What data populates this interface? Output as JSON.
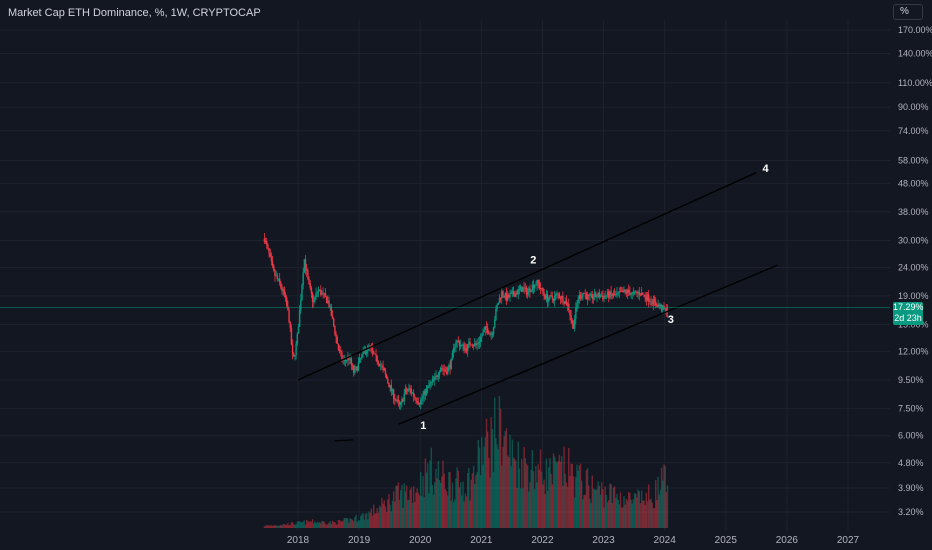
{
  "header": {
    "symbol_title": "Market Cap ETH Dominance, %, 1W, CRYPTOCAP",
    "scale_button": "%"
  },
  "price_badge": {
    "price": "17.29%",
    "countdown": "2d 23h"
  },
  "colors": {
    "background": "#131722",
    "up": "#089981",
    "down": "#f23645",
    "line": "#000000",
    "grid": "#1e222d"
  },
  "chart_data": {
    "type": "candlestick",
    "y_scale": "log",
    "ylim": [
      3.0,
      185
    ],
    "xlim": [
      2017.35,
      2027.9
    ],
    "y_ticks": [
      {
        "value": 170,
        "label": "170.00%"
      },
      {
        "value": 140,
        "label": "140.00%"
      },
      {
        "value": 110,
        "label": "110.00%"
      },
      {
        "value": 90,
        "label": "90.00%"
      },
      {
        "value": 74,
        "label": "74.00%"
      },
      {
        "value": 58,
        "label": "58.00%"
      },
      {
        "value": 48,
        "label": "48.00%"
      },
      {
        "value": 38,
        "label": "38.00%"
      },
      {
        "value": 30,
        "label": "30.00%"
      },
      {
        "value": 24,
        "label": "24.00%"
      },
      {
        "value": 19,
        "label": "19.00%"
      },
      {
        "value": 15,
        "label": "15.00%"
      },
      {
        "value": 12,
        "label": "12.00%"
      },
      {
        "value": 9.5,
        "label": "9.50%"
      },
      {
        "value": 7.5,
        "label": "7.50%"
      },
      {
        "value": 6,
        "label": "6.00%"
      },
      {
        "value": 4.8,
        "label": "4.80%"
      },
      {
        "value": 3.9,
        "label": "3.90%"
      },
      {
        "value": 3.2,
        "label": "3.20%"
      }
    ],
    "x_ticks": [
      {
        "value": 2018,
        "label": "2018"
      },
      {
        "value": 2019,
        "label": "2019"
      },
      {
        "value": 2020,
        "label": "2020"
      },
      {
        "value": 2021,
        "label": "2021"
      },
      {
        "value": 2022,
        "label": "2022"
      },
      {
        "value": 2023,
        "label": "2023"
      },
      {
        "value": 2024,
        "label": "2024"
      },
      {
        "value": 2025,
        "label": "2025"
      },
      {
        "value": 2026,
        "label": "2026"
      },
      {
        "value": 2027,
        "label": "2027"
      }
    ],
    "last_price": 17.29,
    "price_path": [
      [
        2017.45,
        30.5
      ],
      [
        2017.52,
        27
      ],
      [
        2017.6,
        23
      ],
      [
        2017.7,
        21
      ],
      [
        2017.78,
        19
      ],
      [
        2017.85,
        16
      ],
      [
        2017.92,
        11
      ],
      [
        2017.98,
        13
      ],
      [
        2018.03,
        17
      ],
      [
        2018.1,
        26
      ],
      [
        2018.17,
        21
      ],
      [
        2018.25,
        18
      ],
      [
        2018.33,
        20
      ],
      [
        2018.42,
        19
      ],
      [
        2018.5,
        18
      ],
      [
        2018.58,
        15
      ],
      [
        2018.67,
        12
      ],
      [
        2018.75,
        11
      ],
      [
        2018.83,
        11.5
      ],
      [
        2018.92,
        10
      ],
      [
        2019.0,
        11
      ],
      [
        2019.08,
        12
      ],
      [
        2019.17,
        12.5
      ],
      [
        2019.25,
        11.5
      ],
      [
        2019.33,
        11
      ],
      [
        2019.42,
        10
      ],
      [
        2019.5,
        9
      ],
      [
        2019.58,
        8.2
      ],
      [
        2019.67,
        7.6
      ],
      [
        2019.75,
        8.6
      ],
      [
        2019.83,
        8.8
      ],
      [
        2019.92,
        8.2
      ],
      [
        2020.0,
        7.9
      ],
      [
        2020.08,
        8.6
      ],
      [
        2020.17,
        9.2
      ],
      [
        2020.25,
        9.6
      ],
      [
        2020.33,
        10.6
      ],
      [
        2020.42,
        10.2
      ],
      [
        2020.5,
        10.8
      ],
      [
        2020.58,
        13.2
      ],
      [
        2020.67,
        12.6
      ],
      [
        2020.75,
        12.3
      ],
      [
        2020.83,
        13.0
      ],
      [
        2020.92,
        12.6
      ],
      [
        2021.0,
        13.6
      ],
      [
        2021.08,
        14.6
      ],
      [
        2021.17,
        13.8
      ],
      [
        2021.25,
        17.2
      ],
      [
        2021.33,
        19.6
      ],
      [
        2021.42,
        18.6
      ],
      [
        2021.5,
        19.2
      ],
      [
        2021.58,
        19.6
      ],
      [
        2021.67,
        20.2
      ],
      [
        2021.75,
        19.6
      ],
      [
        2021.83,
        20.6
      ],
      [
        2021.92,
        21.2
      ],
      [
        2022.0,
        19.6
      ],
      [
        2022.08,
        18.6
      ],
      [
        2022.17,
        18.6
      ],
      [
        2022.25,
        19.2
      ],
      [
        2022.33,
        18.6
      ],
      [
        2022.42,
        17.6
      ],
      [
        2022.5,
        14.6
      ],
      [
        2022.58,
        18.6
      ],
      [
        2022.67,
        19.6
      ],
      [
        2022.75,
        18.6
      ],
      [
        2022.83,
        18.9
      ],
      [
        2022.92,
        19.1
      ],
      [
        2023.0,
        18.9
      ],
      [
        2023.08,
        19.2
      ],
      [
        2023.17,
        19.0
      ],
      [
        2023.25,
        19.2
      ],
      [
        2023.33,
        19.6
      ],
      [
        2023.42,
        19.6
      ],
      [
        2023.5,
        19.2
      ],
      [
        2023.58,
        19.6
      ],
      [
        2023.67,
        19.0
      ],
      [
        2023.75,
        18.6
      ],
      [
        2023.83,
        17.9
      ],
      [
        2023.92,
        17.4
      ],
      [
        2024.0,
        16.8
      ],
      [
        2024.05,
        17.29
      ]
    ],
    "volume_profile": [
      [
        2017.45,
        0.02
      ],
      [
        2017.9,
        0.04
      ],
      [
        2018.2,
        0.06
      ],
      [
        2018.6,
        0.05
      ],
      [
        2019.0,
        0.1
      ],
      [
        2019.3,
        0.18
      ],
      [
        2019.6,
        0.3
      ],
      [
        2019.9,
        0.35
      ],
      [
        2020.15,
        0.55
      ],
      [
        2020.4,
        0.45
      ],
      [
        2020.6,
        0.4
      ],
      [
        2020.85,
        0.45
      ],
      [
        2021.0,
        0.7
      ],
      [
        2021.2,
        0.85
      ],
      [
        2021.3,
        1.0
      ],
      [
        2021.5,
        0.65
      ],
      [
        2021.7,
        0.6
      ],
      [
        2021.9,
        0.55
      ],
      [
        2022.1,
        0.5
      ],
      [
        2022.4,
        0.55
      ],
      [
        2022.6,
        0.45
      ],
      [
        2022.9,
        0.35
      ],
      [
        2023.2,
        0.3
      ],
      [
        2023.5,
        0.25
      ],
      [
        2023.8,
        0.3
      ],
      [
        2024.0,
        0.45
      ],
      [
        2024.05,
        0.3
      ]
    ],
    "annotations": {
      "channel_upper": [
        [
          2018.0,
          9.5
        ],
        [
          2025.5,
          52.5
        ]
      ],
      "channel_lower": [
        [
          2019.65,
          6.6
        ],
        [
          2025.85,
          24.5
        ]
      ],
      "dash": [
        [
          2018.6,
          5.75
        ],
        [
          2018.9,
          5.8
        ]
      ],
      "wave_labels": [
        {
          "label": "1",
          "x": 2020.05,
          "y": 6.55
        },
        {
          "label": "2",
          "x": 2021.85,
          "y": 25.6
        },
        {
          "label": "3",
          "x": 2024.1,
          "y": 15.7
        },
        {
          "label": "4",
          "x": 2025.65,
          "y": 54.5
        }
      ]
    }
  }
}
